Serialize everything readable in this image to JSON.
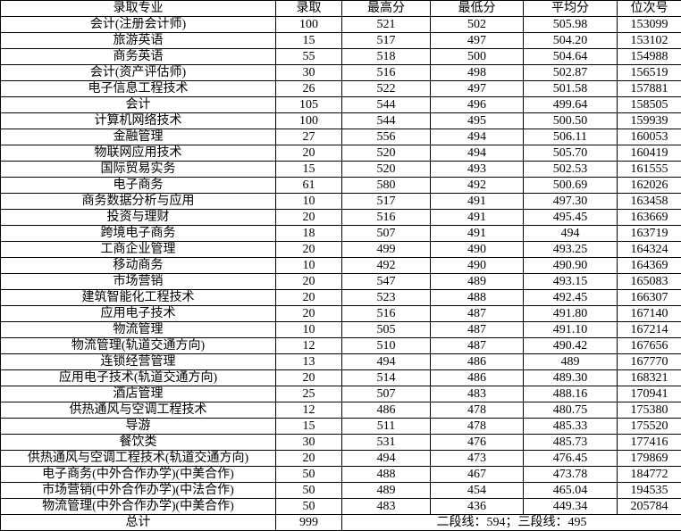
{
  "table": {
    "columns": [
      "录取专业",
      "录取",
      "最高分",
      "最低分",
      "平均分",
      "位次号"
    ],
    "rows": [
      [
        "会计(注册会计师)",
        "100",
        "521",
        "502",
        "505.98",
        "153099"
      ],
      [
        "旅游英语",
        "15",
        "517",
        "497",
        "504.20",
        "153102"
      ],
      [
        "商务英语",
        "55",
        "518",
        "500",
        "504.64",
        "154988"
      ],
      [
        "会计(资产评估师)",
        "30",
        "516",
        "498",
        "502.87",
        "156519"
      ],
      [
        "电子信息工程技术",
        "26",
        "522",
        "497",
        "501.58",
        "157881"
      ],
      [
        "会计",
        "105",
        "544",
        "496",
        "499.64",
        "158505"
      ],
      [
        "计算机网络技术",
        "100",
        "544",
        "495",
        "500.50",
        "159939"
      ],
      [
        "金融管理",
        "27",
        "556",
        "494",
        "506.11",
        "160053"
      ],
      [
        "物联网应用技术",
        "20",
        "520",
        "494",
        "505.70",
        "160419"
      ],
      [
        "国际贸易实务",
        "15",
        "520",
        "493",
        "502.53",
        "161555"
      ],
      [
        "电子商务",
        "61",
        "580",
        "492",
        "500.69",
        "162026"
      ],
      [
        "商务数据分析与应用",
        "10",
        "517",
        "491",
        "497.30",
        "163458"
      ],
      [
        "投资与理财",
        "20",
        "516",
        "491",
        "495.45",
        "163669"
      ],
      [
        "跨境电子商务",
        "18",
        "507",
        "491",
        "494",
        "163719"
      ],
      [
        "工商企业管理",
        "20",
        "499",
        "490",
        "493.25",
        "164324"
      ],
      [
        "移动商务",
        "10",
        "492",
        "490",
        "490.90",
        "164369"
      ],
      [
        "市场营销",
        "20",
        "547",
        "489",
        "493.15",
        "165083"
      ],
      [
        "建筑智能化工程技术",
        "20",
        "523",
        "488",
        "492.45",
        "166307"
      ],
      [
        "应用电子技术",
        "20",
        "516",
        "487",
        "491.80",
        "167140"
      ],
      [
        "物流管理",
        "10",
        "505",
        "487",
        "491.10",
        "167214"
      ],
      [
        "物流管理(轨道交通方向)",
        "12",
        "510",
        "487",
        "490.42",
        "167656"
      ],
      [
        "连锁经营管理",
        "13",
        "494",
        "486",
        "489",
        "167770"
      ],
      [
        "应用电子技术(轨道交通方向)",
        "20",
        "514",
        "486",
        "489.30",
        "168321"
      ],
      [
        "酒店管理",
        "25",
        "507",
        "483",
        "488.16",
        "170941"
      ],
      [
        "供热通风与空调工程技术",
        "12",
        "486",
        "478",
        "480.75",
        "175380"
      ],
      [
        "导游",
        "15",
        "511",
        "478",
        "485.33",
        "175520"
      ],
      [
        "餐饮类",
        "30",
        "531",
        "476",
        "485.73",
        "177416"
      ],
      [
        "供热通风与空调工程技术(轨道交通方向)",
        "20",
        "494",
        "473",
        "476.45",
        "179869"
      ],
      [
        "电子商务(中外合作办学)(中美合作)",
        "50",
        "488",
        "467",
        "473.78",
        "184772"
      ],
      [
        "市场营销(中外合作办学)(中法合作)",
        "50",
        "489",
        "454",
        "465.04",
        "194535"
      ],
      [
        "物流管理(中外合作办学)(中美合作)",
        "50",
        "483",
        "436",
        "449.34",
        "205784"
      ]
    ],
    "footer": {
      "label": "总计",
      "total": "999",
      "note": "二段线：594；三段线：495"
    }
  },
  "colors": {
    "border": "#000000",
    "text": "#000000",
    "background": "#ffffff"
  }
}
